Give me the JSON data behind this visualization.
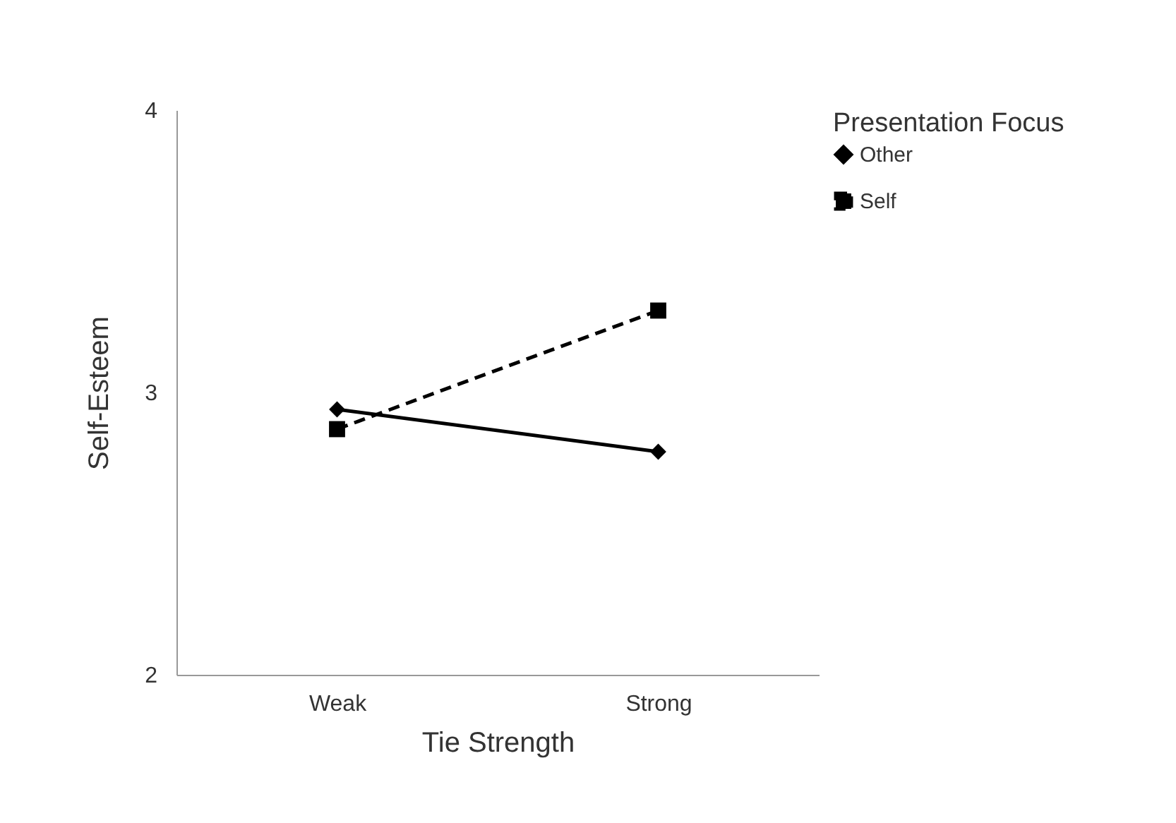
{
  "chart_data": {
    "type": "line",
    "xlabel": "Tie Strength",
    "ylabel": "Self-Esteem",
    "legend_title": "Presentation Focus",
    "categories": [
      "Weak",
      "Strong"
    ],
    "series": [
      {
        "name": "Other",
        "color": "#000000",
        "marker": "diamond",
        "line_style": "solid",
        "values": [
          2.94,
          2.79
        ]
      },
      {
        "name": "Self",
        "color": "#000000",
        "marker": "square",
        "line_style": "dashed",
        "values": [
          2.87,
          3.29
        ]
      }
    ],
    "ylim": [
      2,
      4
    ],
    "yticks": [
      2,
      3,
      4
    ],
    "grid": false,
    "legend": "right"
  }
}
